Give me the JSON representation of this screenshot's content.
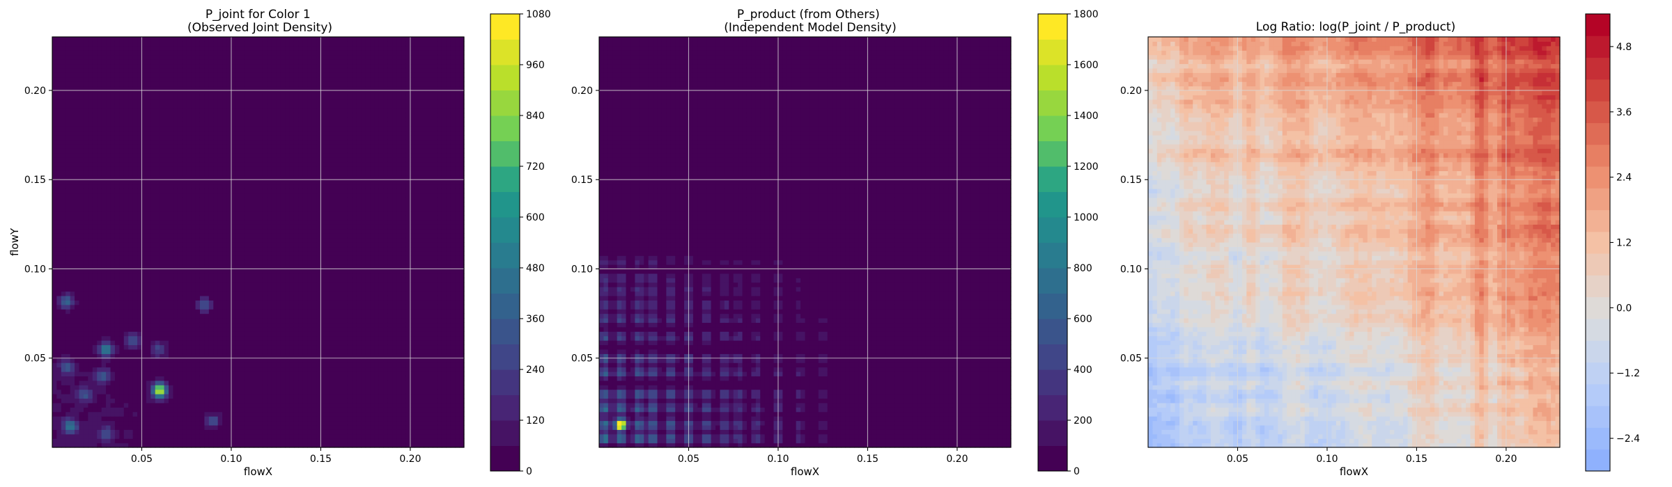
{
  "chart_data": [
    {
      "type": "heatmap",
      "title": "P_joint for Color 1\n(Observed Joint Density)",
      "xlabel": "flowX",
      "ylabel": "flowY",
      "xlim": [
        0.0,
        0.23
      ],
      "ylim": [
        0.0,
        0.23
      ],
      "xticks": [
        0.05,
        0.1,
        0.15,
        0.2
      ],
      "xticklabels": [
        "0.05",
        "0.10",
        "0.15",
        "0.20"
      ],
      "yticks": [
        0.05,
        0.1,
        0.15,
        0.2
      ],
      "yticklabels": [
        "0.05",
        "0.10",
        "0.15",
        "0.20"
      ],
      "grid": true,
      "colormap": "viridis",
      "colorbar": {
        "min": 0,
        "max": 1080,
        "ticks": [
          0,
          120,
          240,
          360,
          480,
          600,
          720,
          840,
          960,
          1080
        ],
        "ticklabels": [
          "0",
          "120",
          "240",
          "360",
          "480",
          "600",
          "720",
          "840",
          "960",
          "1080"
        ],
        "levels": 18
      },
      "hotspots": [
        {
          "x": 0.06,
          "y": 0.032,
          "value": 950
        },
        {
          "x": 0.03,
          "y": 0.055,
          "value": 520
        },
        {
          "x": 0.008,
          "y": 0.082,
          "value": 380
        },
        {
          "x": 0.085,
          "y": 0.08,
          "value": 360
        },
        {
          "x": 0.01,
          "y": 0.012,
          "value": 420
        },
        {
          "x": 0.028,
          "y": 0.04,
          "value": 330
        },
        {
          "x": 0.008,
          "y": 0.045,
          "value": 300
        },
        {
          "x": 0.045,
          "y": 0.06,
          "value": 280
        },
        {
          "x": 0.06,
          "y": 0.055,
          "value": 260
        },
        {
          "x": 0.018,
          "y": 0.03,
          "value": 300
        },
        {
          "x": 0.09,
          "y": 0.015,
          "value": 280
        },
        {
          "x": 0.03,
          "y": 0.008,
          "value": 260
        }
      ]
    },
    {
      "type": "heatmap",
      "title": "P_product (from Others)\n(Independent Model Density)",
      "xlabel": "flowX",
      "ylabel": "",
      "xlim": [
        0.0,
        0.23
      ],
      "ylim": [
        0.0,
        0.23
      ],
      "xticks": [
        0.05,
        0.1,
        0.15,
        0.2
      ],
      "xticklabels": [
        "0.05",
        "0.10",
        "0.15",
        "0.20"
      ],
      "yticks": [
        0.05,
        0.1,
        0.15,
        0.2
      ],
      "yticklabels": [
        "0.05",
        "0.10",
        "0.15",
        "0.20"
      ],
      "grid": true,
      "colormap": "viridis",
      "colorbar": {
        "min": 0,
        "max": 1800,
        "ticks": [
          0,
          200,
          400,
          600,
          800,
          1000,
          1200,
          1400,
          1600,
          1800
        ],
        "ticklabels": [
          "0",
          "200",
          "400",
          "600",
          "800",
          "1000",
          "1200",
          "1400",
          "1600",
          "1800"
        ],
        "levels": 18
      },
      "x_marginal_peaks": [
        0.003,
        0.012,
        0.022,
        0.03,
        0.04,
        0.05,
        0.06,
        0.07,
        0.078,
        0.088,
        0.1,
        0.112,
        0.125
      ],
      "y_marginal_peaks": [
        0.005,
        0.013,
        0.022,
        0.03,
        0.042,
        0.05,
        0.062,
        0.072,
        0.08,
        0.088,
        0.095,
        0.104
      ],
      "peak": {
        "x": 0.012,
        "y": 0.013,
        "value": 1650
      }
    },
    {
      "type": "heatmap",
      "title": "Log Ratio: log(P_joint / P_product)",
      "xlabel": "flowX",
      "ylabel": "",
      "xlim": [
        0.0,
        0.23
      ],
      "ylim": [
        0.0,
        0.23
      ],
      "xticks": [
        0.05,
        0.1,
        0.15,
        0.2
      ],
      "xticklabels": [
        "0.05",
        "0.10",
        "0.15",
        "0.20"
      ],
      "yticks": [
        0.05,
        0.1,
        0.15,
        0.2
      ],
      "yticklabels": [
        "0.05",
        "0.10",
        "0.15",
        "0.20"
      ],
      "grid": true,
      "colormap": "coolwarm",
      "colorbar": {
        "min": -3.0,
        "max": 5.4,
        "ticks": [
          -2.4,
          -1.2,
          0.0,
          1.2,
          2.4,
          3.6,
          4.8
        ],
        "ticklabels": [
          "−2.4",
          "−1.2",
          "0.0",
          "1.2",
          "2.4",
          "3.6",
          "4.8"
        ],
        "levels": 21
      }
    }
  ]
}
